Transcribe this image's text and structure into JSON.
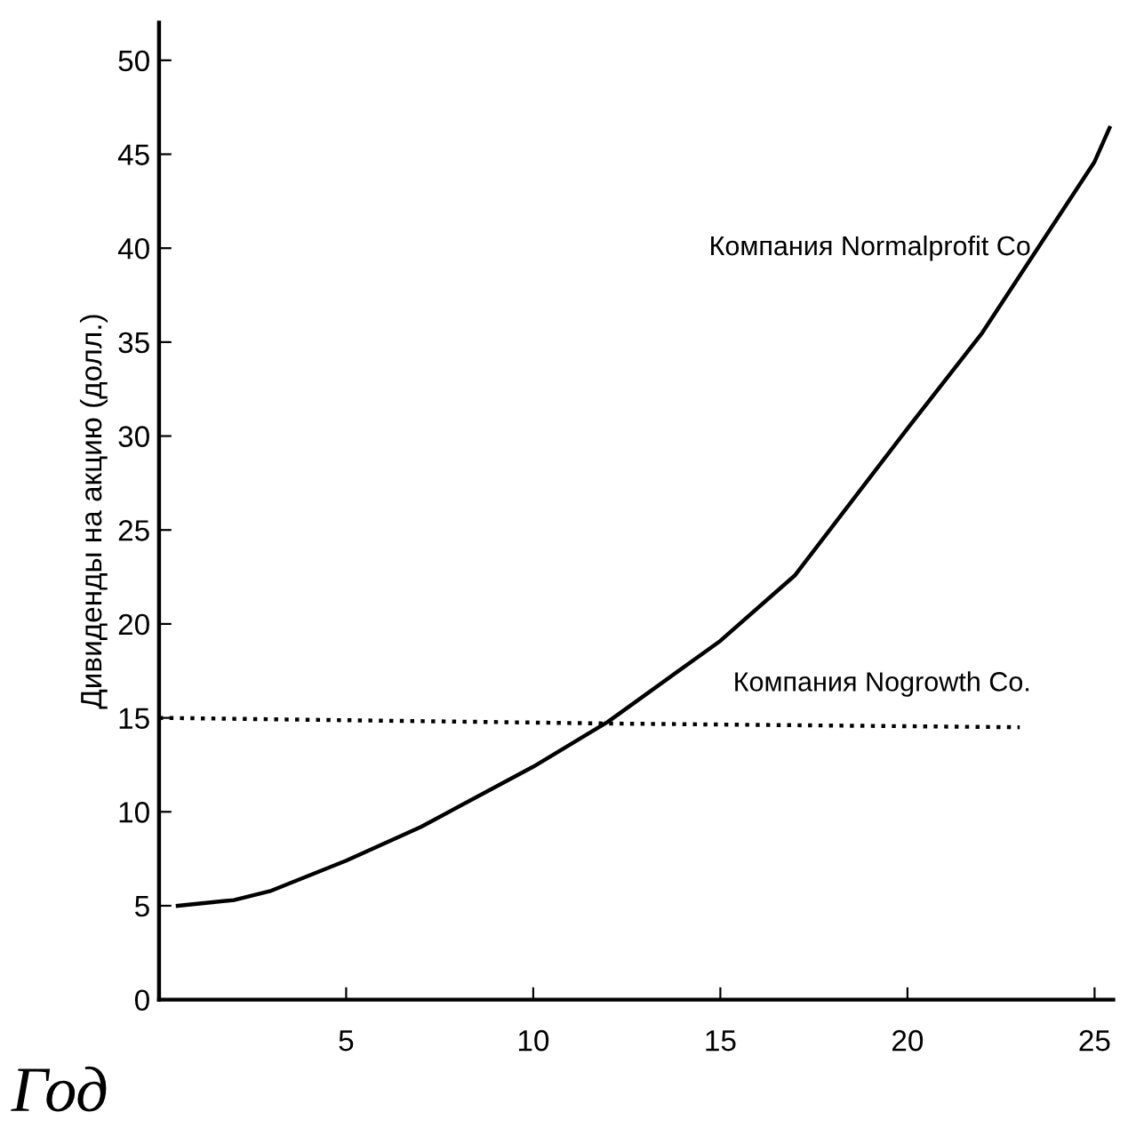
{
  "chart_data": {
    "type": "line",
    "xlabel": "Год",
    "ylabel": "Дивиденды на акцию (долл.)",
    "series": [
      {
        "name": "Компания Normalprofit Co",
        "color": "#000000",
        "line_style": "solid",
        "x": [
          0.5,
          2,
          3,
          5,
          7,
          10,
          12,
          15,
          17,
          20,
          22,
          25,
          25.4
        ],
        "values": [
          5,
          5.3,
          5.8,
          7.4,
          9.2,
          12.4,
          14.8,
          19.1,
          22.6,
          30.4,
          35.5,
          44.6,
          46.4
        ]
      },
      {
        "name": "Компания Nogrowth Co.",
        "color": "#000000",
        "line_style": "dotted",
        "x": [
          0,
          12,
          23
        ],
        "values": [
          15,
          14.7,
          14.5
        ]
      }
    ],
    "xlim": [
      0,
      25.5
    ],
    "ylim": [
      0,
      52
    ],
    "xticks": [
      5,
      10,
      15,
      20,
      25
    ],
    "yticks": [
      0,
      5,
      10,
      15,
      20,
      25,
      30,
      35,
      40,
      45,
      50
    ],
    "grid": false,
    "legend": false,
    "marker": "none"
  }
}
